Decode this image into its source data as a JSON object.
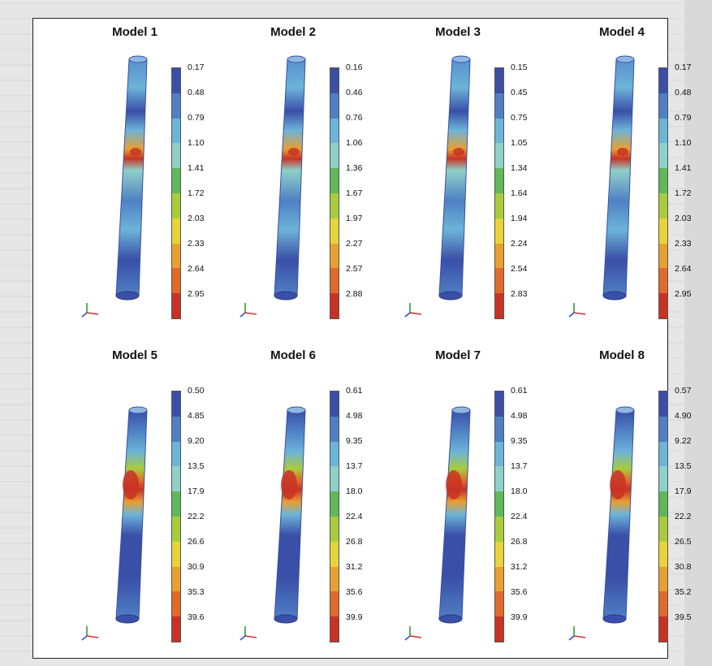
{
  "figure": {
    "models": [
      {
        "title": "Model 1",
        "legend": [
          "0.17",
          "0.48",
          "0.79",
          "1.10",
          "1.41",
          "1.72",
          "2.03",
          "2.33",
          "2.64",
          "2.95"
        ],
        "hot": "high"
      },
      {
        "title": "Model 2",
        "legend": [
          "0.16",
          "0.46",
          "0.76",
          "1.06",
          "1.36",
          "1.67",
          "1.97",
          "2.27",
          "2.57",
          "2.88"
        ],
        "hot": "high"
      },
      {
        "title": "Model 3",
        "legend": [
          "0.15",
          "0.45",
          "0.75",
          "1.05",
          "1.34",
          "1.64",
          "1.94",
          "2.24",
          "2.54",
          "2.83"
        ],
        "hot": "high"
      },
      {
        "title": "Model 4",
        "legend": [
          "0.17",
          "0.48",
          "0.79",
          "1.10",
          "1.41",
          "1.72",
          "2.03",
          "2.33",
          "2.64",
          "2.95"
        ],
        "hot": "high"
      },
      {
        "title": "Model 5",
        "legend": [
          "0.50",
          "4.85",
          "9.20",
          "13.5",
          "17.9",
          "22.2",
          "26.6",
          "30.9",
          "35.3",
          "39.6"
        ],
        "hot": "mid"
      },
      {
        "title": "Model 6",
        "legend": [
          "0.61",
          "4.98",
          "9.35",
          "13.7",
          "18.0",
          "22.4",
          "26.8",
          "31.2",
          "35.6",
          "39.9"
        ],
        "hot": "mid"
      },
      {
        "title": "Model 7",
        "legend": [
          "0.61",
          "4.98",
          "9.35",
          "13.7",
          "18.0",
          "22.4",
          "26.8",
          "31.2",
          "35.6",
          "39.9"
        ],
        "hot": "mid"
      },
      {
        "title": "Model 8",
        "legend": [
          "0.57",
          "4.90",
          "9.22",
          "13.5",
          "17.9",
          "22.2",
          "26.5",
          "30.8",
          "35.2",
          "39.5"
        ],
        "hot": "mid"
      }
    ],
    "legend_colors": [
      "#3a4fa8",
      "#4f80c4",
      "#6cb4d8",
      "#8fd0c8",
      "#5fb85a",
      "#a8cc3c",
      "#e8d43a",
      "#e8a030",
      "#e06a2a",
      "#c83224"
    ],
    "axis_colors": {
      "x": "#d03030",
      "y": "#30a030",
      "z": "#3050d0"
    }
  }
}
